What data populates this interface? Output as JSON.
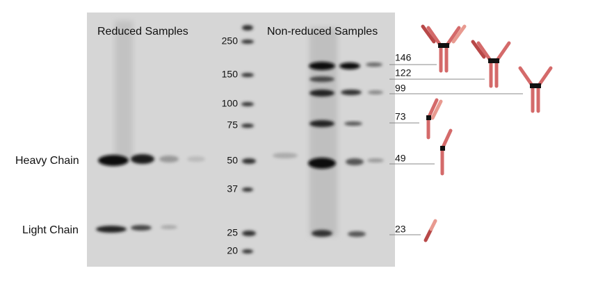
{
  "header": {
    "reduced": "Reduced Samples",
    "nonreduced": "Non-reduced Samples"
  },
  "chains": {
    "heavy": "Heavy Chain",
    "light": "Light Chain"
  },
  "markers": [
    250,
    150,
    100,
    75,
    50,
    37,
    25,
    20
  ],
  "bands": [
    146,
    122,
    99,
    73,
    49,
    23
  ]
}
